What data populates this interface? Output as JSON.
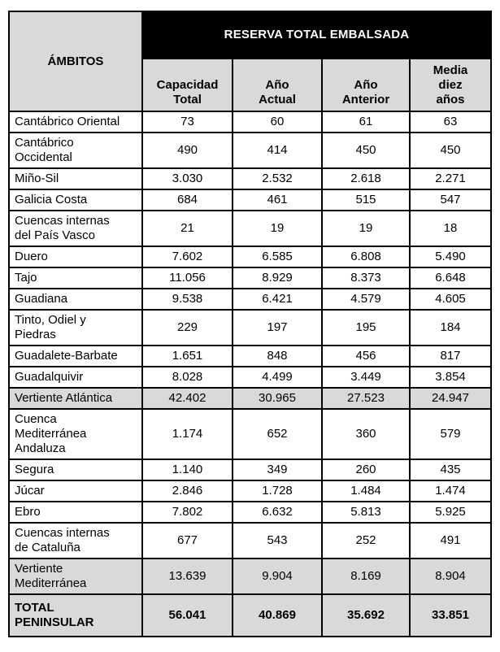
{
  "table": {
    "title": "RESERVA TOTAL EMBALSADA",
    "corner_header": "ÁMBITOS",
    "columns": [
      "Capacidad\nTotal",
      "Año\nActual",
      "Año\nAnterior",
      "Media\ndiez\naños"
    ],
    "rows": [
      {
        "label": "Cantábrico Oriental",
        "values": [
          "73",
          "60",
          "61",
          "63"
        ],
        "shaded": false,
        "bold": false
      },
      {
        "label": "Cantábrico\nOccidental",
        "values": [
          "490",
          "414",
          "450",
          "450"
        ],
        "shaded": false,
        "bold": false
      },
      {
        "label": "Miño-Sil",
        "values": [
          "3.030",
          "2.532",
          "2.618",
          "2.271"
        ],
        "shaded": false,
        "bold": false
      },
      {
        "label": "Galicia Costa",
        "values": [
          "684",
          "461",
          "515",
          "547"
        ],
        "shaded": false,
        "bold": false
      },
      {
        "label": "Cuencas internas\ndel País Vasco",
        "values": [
          "21",
          "19",
          "19",
          "18"
        ],
        "shaded": false,
        "bold": false
      },
      {
        "label": "Duero",
        "values": [
          "7.602",
          "6.585",
          "6.808",
          "5.490"
        ],
        "shaded": false,
        "bold": false
      },
      {
        "label": "Tajo",
        "values": [
          "11.056",
          "8.929",
          "8.373",
          "6.648"
        ],
        "shaded": false,
        "bold": false
      },
      {
        "label": "Guadiana",
        "values": [
          "9.538",
          "6.421",
          "4.579",
          "4.605"
        ],
        "shaded": false,
        "bold": false
      },
      {
        "label": "Tinto, Odiel y\nPiedras",
        "values": [
          "229",
          "197",
          "195",
          "184"
        ],
        "shaded": false,
        "bold": false
      },
      {
        "label": "Guadalete-Barbate",
        "values": [
          "1.651",
          "848",
          "456",
          "817"
        ],
        "shaded": false,
        "bold": false
      },
      {
        "label": "Guadalquivir",
        "values": [
          "8.028",
          "4.499",
          "3.449",
          "3.854"
        ],
        "shaded": false,
        "bold": false
      },
      {
        "label": "Vertiente Atlántica",
        "values": [
          "42.402",
          "30.965",
          "27.523",
          "24.947"
        ],
        "shaded": true,
        "bold": false
      },
      {
        "label": "Cuenca\nMediterránea\nAndaluza",
        "values": [
          "1.174",
          "652",
          "360",
          "579"
        ],
        "shaded": false,
        "bold": false
      },
      {
        "label": "Segura",
        "values": [
          "1.140",
          "349",
          "260",
          "435"
        ],
        "shaded": false,
        "bold": false
      },
      {
        "label": "Júcar",
        "values": [
          "2.846",
          "1.728",
          "1.484",
          "1.474"
        ],
        "shaded": false,
        "bold": false
      },
      {
        "label": "Ebro",
        "values": [
          "7.802",
          "6.632",
          "5.813",
          "5.925"
        ],
        "shaded": false,
        "bold": false
      },
      {
        "label": "Cuencas internas\nde Cataluña",
        "values": [
          "677",
          "543",
          "252",
          "491"
        ],
        "shaded": false,
        "bold": false
      },
      {
        "label": "Vertiente\nMediterránea",
        "values": [
          "13.639",
          "9.904",
          "8.169",
          "8.904"
        ],
        "shaded": true,
        "bold": false
      },
      {
        "label": "TOTAL\nPENINSULAR",
        "values": [
          "56.041",
          "40.869",
          "35.692",
          "33.851"
        ],
        "shaded": true,
        "bold": true
      }
    ],
    "colors": {
      "title_bg": "#000000",
      "title_text": "#ffffff",
      "shaded_bg": "#d9d9d9",
      "border": "#000000"
    }
  }
}
